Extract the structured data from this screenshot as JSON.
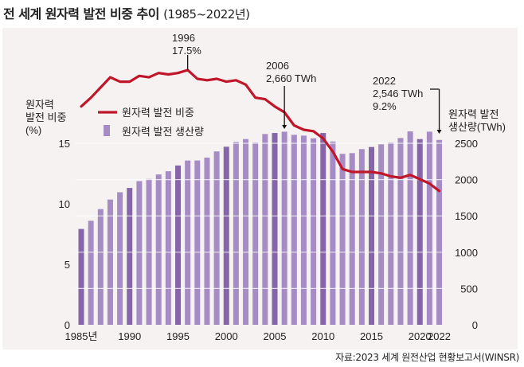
{
  "title": {
    "main": "전 세계 원자력 발전 비중 추이",
    "sub": "(1985~2022년)"
  },
  "source": "자료:2023 세계 원전산업 현황보고서(WINSR)",
  "colors": {
    "line": "#c0162a",
    "bar_light": "#a58cc4",
    "bar_dark": "#8566a8",
    "panel": "#f6f2f1"
  },
  "chart_data": {
    "type": "bar+line",
    "title": "전 세계 원자력 발전 비중 추이 (1985~2022년)",
    "x": [
      1985,
      1986,
      1987,
      1988,
      1989,
      1990,
      1991,
      1992,
      1993,
      1994,
      1995,
      1996,
      1997,
      1998,
      1999,
      2000,
      2001,
      2002,
      2003,
      2004,
      2005,
      2006,
      2007,
      2008,
      2009,
      2010,
      2011,
      2012,
      2013,
      2014,
      2015,
      2016,
      2017,
      2018,
      2019,
      2020,
      2021,
      2022
    ],
    "x_tick_labels": [
      "1985년",
      "1990",
      "1995",
      "2000",
      "2005",
      "2010",
      "2015",
      "2020",
      "2022"
    ],
    "x_tick_years": [
      1985,
      1990,
      1995,
      2000,
      2005,
      2010,
      2015,
      2020,
      2022
    ],
    "series": [
      {
        "name": "원자력 발전 비중",
        "type": "line",
        "axis": "left",
        "unit": "%",
        "values": [
          15.0,
          15.6,
          16.3,
          17.0,
          16.7,
          16.7,
          17.1,
          17.0,
          17.3,
          17.2,
          17.3,
          17.5,
          16.9,
          16.8,
          16.9,
          16.7,
          16.8,
          16.5,
          15.6,
          15.5,
          15.0,
          14.6,
          13.7,
          13.4,
          13.3,
          12.8,
          11.9,
          10.7,
          10.5,
          10.5,
          10.5,
          10.4,
          10.2,
          10.1,
          10.3,
          10.0,
          9.7,
          9.2
        ]
      },
      {
        "name": "원자력 발전 생산량",
        "type": "bar",
        "axis": "right",
        "unit": "TWh",
        "values": [
          1320,
          1433,
          1594,
          1725,
          1826,
          1885,
          1979,
          2009,
          2071,
          2115,
          2194,
          2263,
          2263,
          2303,
          2388,
          2453,
          2519,
          2558,
          2511,
          2628,
          2642,
          2660,
          2617,
          2606,
          2569,
          2642,
          2525,
          2355,
          2365,
          2420,
          2449,
          2486,
          2511,
          2573,
          2664,
          2558,
          2660,
          2546
        ],
        "highlight_years": [
          1985,
          1990,
          1995,
          2000,
          2005,
          2010,
          2015,
          2020
        ]
      }
    ],
    "left_axis": {
      "label_lines": [
        "원자력",
        "발전 비중",
        "(%)"
      ],
      "ticks": [
        0,
        5,
        10,
        15
      ],
      "line_scale_max": 17.5
    },
    "right_axis": {
      "label_lines": [
        "원자력 발전",
        "생산량(TWh)"
      ],
      "ticks": [
        0,
        500,
        1000,
        1500,
        2000,
        2500
      ],
      "ylim": [
        0,
        2500
      ]
    },
    "legend": {
      "placement": "top-left",
      "items": [
        {
          "label": "원자력 발전 비중",
          "kind": "line"
        },
        {
          "label": "원자력 발전 생산량",
          "kind": "bar"
        }
      ]
    },
    "annotations": [
      {
        "year": 1996,
        "lines": [
          "1996",
          "17.5%"
        ],
        "target": "line"
      },
      {
        "year": 2006,
        "lines": [
          "2006",
          "2,660 TWh"
        ],
        "target": "bar"
      },
      {
        "year": 2022,
        "lines": [
          "2022",
          "2,546 TWh",
          "9.2%"
        ],
        "target": "bar"
      }
    ],
    "grid": true
  }
}
